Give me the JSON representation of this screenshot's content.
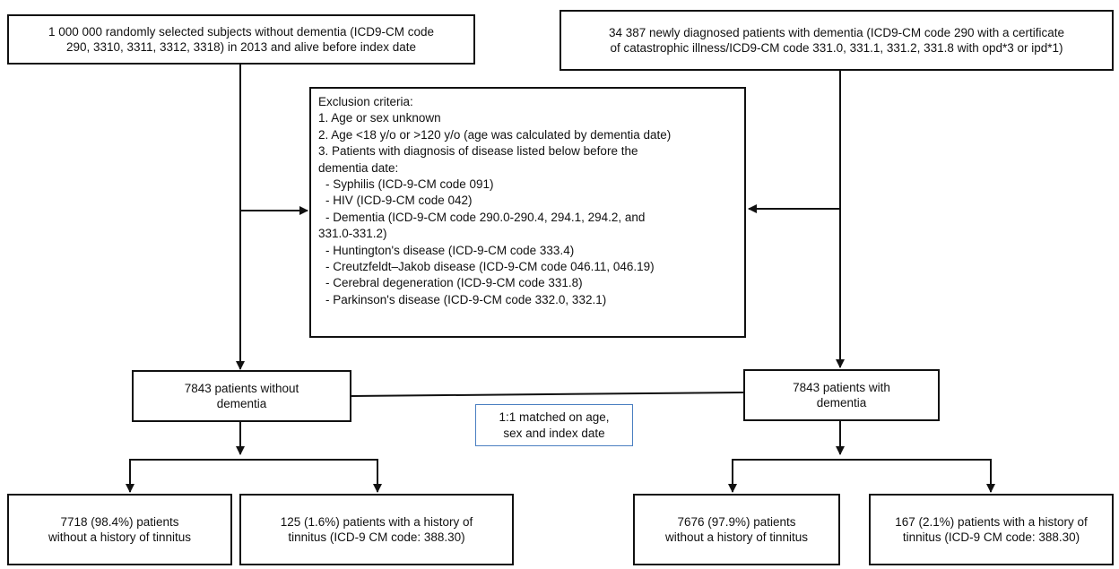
{
  "boxes": {
    "controls_source": "1 000 000 randomly selected subjects without dementia (ICD9-CM code\n290, 3310, 3311, 3312, 3318) in 2013 and alive before index date",
    "dementia_source": "34 387 newly diagnosed patients with dementia (ICD9-CM code 290 with a certificate\nof catastrophic illness/ICD9-CM code 331.0, 331.1, 331.2, 331.8 with opd*3 or ipd*1)",
    "controls_matched": "7843 patients without\ndementia",
    "dementia_matched": "7843 patients with\ndementia",
    "matching_note": "1:1 matched on age,\nsex and index date",
    "controls_no_tinnitus": "7718 (98.4%) patients\nwithout a history of tinnitus",
    "controls_tinnitus": "125 (1.6%) patients with a history of\ntinnitus (ICD-9 CM code: 388.30)",
    "dementia_no_tinnitus": "7676 (97.9%) patients\nwithout a history of tinnitus",
    "dementia_tinnitus": "167 (2.1%) patients with a history of\ntinnitus  (ICD-9 CM code: 388.30)"
  },
  "exclusion": {
    "lines": [
      "Exclusion criteria:",
      "1. Age or sex unknown",
      "2. Age <18 y/o or >120 y/o (age was calculated by dementia date)",
      "3. Patients with diagnosis of disease listed below before the",
      "dementia date:",
      "  - Syphilis (ICD-9-CM code 091)",
      "  - HIV (ICD-9-CM code 042)",
      "  - Dementia (ICD-9-CM code 290.0-290.4, 294.1, 294.2, and",
      "331.0-331.2)",
      "  - Huntington's disease (ICD-9-CM code 333.4)",
      "  - Creutzfeldt–Jakob disease (ICD-9-CM code 046.11, 046.19)",
      "  - Cerebral degeneration (ICD-9-CM code 331.8)",
      "  - Parkinson's disease (ICD-9-CM code 332.0, 332.1)"
    ]
  },
  "colors": {
    "line": "#111111",
    "matching_border": "#4a7fc1"
  }
}
